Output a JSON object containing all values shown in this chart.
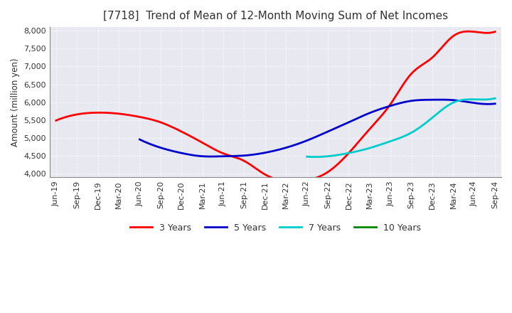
{
  "title": "[7718]  Trend of Mean of 12-Month Moving Sum of Net Incomes",
  "ylabel": "Amount (million yen)",
  "ylim": [
    3900,
    8100
  ],
  "yticks": [
    4000,
    4500,
    5000,
    5500,
    6000,
    6500,
    7000,
    7500,
    8000
  ],
  "plot_bg_color": "#e8e8f0",
  "fig_bg_color": "#ffffff",
  "grid_color": "#ffffff",
  "x_labels": [
    "Jun-19",
    "Sep-19",
    "Dec-19",
    "Mar-20",
    "Jun-20",
    "Sep-20",
    "Dec-20",
    "Mar-21",
    "Jun-21",
    "Sep-21",
    "Dec-21",
    "Mar-22",
    "Jun-22",
    "Sep-22",
    "Dec-22",
    "Mar-23",
    "Jun-23",
    "Sep-23",
    "Dec-23",
    "Mar-24",
    "Jun-24",
    "Sep-24"
  ],
  "series": {
    "3 Years": {
      "color": "#ff0000",
      "data": [
        5490,
        5660,
        5710,
        5680,
        5590,
        5440,
        5180,
        4870,
        4570,
        4360,
        3980,
        3800,
        3820,
        4050,
        4580,
        5250,
        5950,
        6800,
        7250,
        7850,
        7970,
        7970
      ]
    },
    "5 Years": {
      "color": "#0000cc",
      "data": [
        null,
        null,
        null,
        null,
        4960,
        4730,
        4580,
        4490,
        4490,
        4510,
        4590,
        4730,
        4930,
        5180,
        5440,
        5700,
        5900,
        6040,
        6070,
        6060,
        5980,
        5960
      ]
    },
    "7 Years": {
      "color": "#00cccc",
      "data": [
        null,
        null,
        null,
        null,
        null,
        null,
        null,
        null,
        null,
        null,
        null,
        null,
        4480,
        4490,
        4580,
        4720,
        4910,
        5150,
        5570,
        5990,
        6080,
        6110
      ]
    },
    "10 Years": {
      "color": "#008800",
      "data": [
        null,
        null,
        null,
        null,
        null,
        null,
        null,
        null,
        null,
        null,
        null,
        null,
        null,
        null,
        null,
        null,
        null,
        null,
        null,
        null,
        null,
        null
      ]
    }
  },
  "legend_labels": [
    "3 Years",
    "5 Years",
    "7 Years",
    "10 Years"
  ],
  "legend_colors": [
    "#ff0000",
    "#0000cc",
    "#00cccc",
    "#008800"
  ]
}
